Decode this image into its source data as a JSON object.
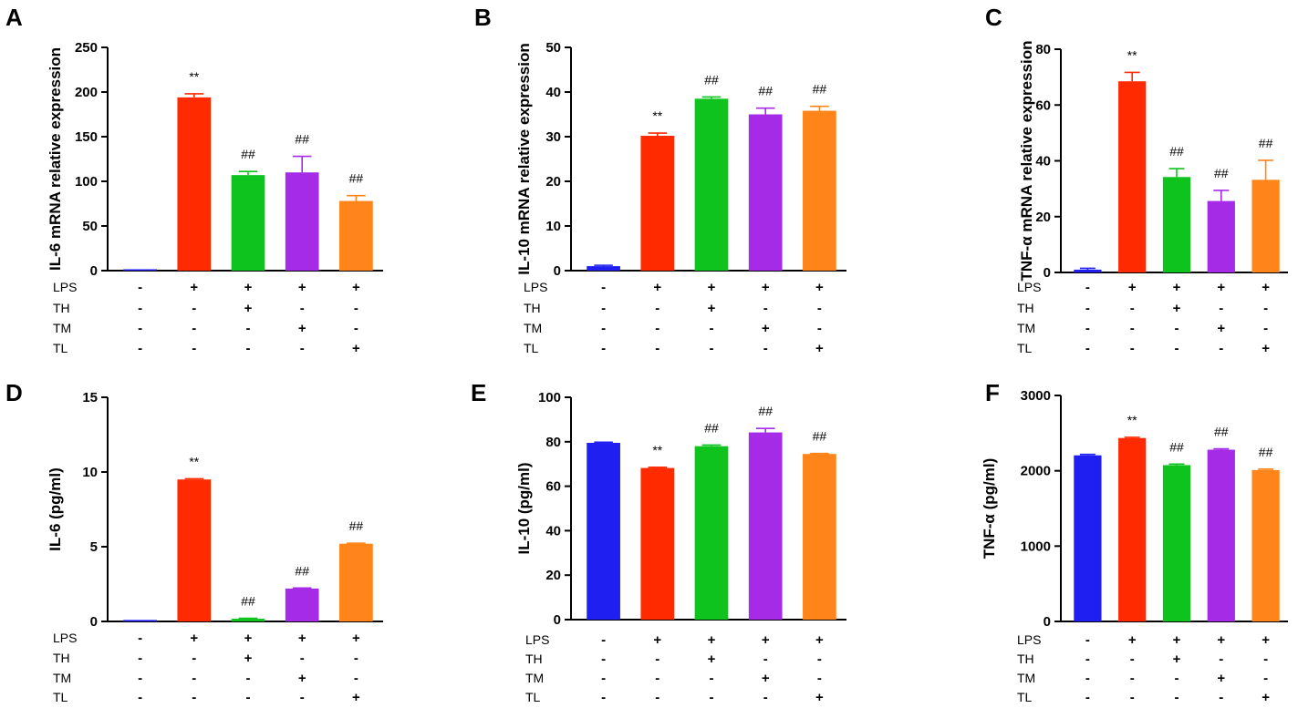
{
  "figure": {
    "condition_rows": [
      "LPS",
      "TH",
      "TM",
      "TL"
    ],
    "condition_signs": [
      [
        "-",
        "+",
        "+",
        "+",
        "+"
      ],
      [
        "-",
        "-",
        "+",
        "-",
        "-"
      ],
      [
        "-",
        "-",
        "-",
        "+",
        "-"
      ],
      [
        "-",
        "-",
        "-",
        "-",
        "+"
      ]
    ],
    "colors": [
      "#1f1ff2",
      "#ff2a00",
      "#0fc31f",
      "#a62be6",
      "#ff8419"
    ]
  },
  "chart_data": [
    {
      "panel": "A",
      "type": "bar",
      "ylabel": "IL-6 mRNA relative expression",
      "ylim": [
        0,
        250
      ],
      "yticks": [
        "0",
        "50",
        "100",
        "150",
        "200",
        "250"
      ],
      "categories": [
        "control",
        "LPS",
        "LPS+TH",
        "LPS+TM",
        "LPS+TL"
      ],
      "values": [
        0,
        194,
        107,
        110,
        78
      ],
      "errors": [
        0,
        4,
        4,
        18,
        6
      ],
      "annotations": [
        "",
        "**",
        "##",
        "##",
        "##"
      ]
    },
    {
      "panel": "B",
      "type": "bar",
      "ylabel": "IL-10 mRNA relative expression",
      "ylim": [
        0,
        50
      ],
      "yticks": [
        "0",
        "10",
        "20",
        "30",
        "40",
        "50"
      ],
      "categories": [
        "control",
        "LPS",
        "LPS+TH",
        "LPS+TM",
        "LPS+TL"
      ],
      "values": [
        1,
        30.2,
        38.5,
        35,
        35.8
      ],
      "errors": [
        0.2,
        0.6,
        0.4,
        1.4,
        1.0
      ],
      "annotations": [
        "",
        "**",
        "##",
        "##",
        "##"
      ]
    },
    {
      "panel": "C",
      "type": "bar",
      "ylabel": "TNF-α mRNA relative expression",
      "ylim": [
        0,
        80
      ],
      "yticks": [
        "0",
        "20",
        "40",
        "60",
        "80"
      ],
      "categories": [
        "control",
        "LPS",
        "LPS+TH",
        "LPS+TM",
        "LPS+TL"
      ],
      "values": [
        1,
        68.5,
        34.2,
        25.6,
        33.2
      ],
      "errors": [
        0.5,
        3.2,
        3.0,
        3.8,
        7.0
      ],
      "annotations": [
        "",
        "**",
        "##",
        "##",
        "##"
      ]
    },
    {
      "panel": "D",
      "type": "bar",
      "ylabel": "IL-6  (pg/ml)",
      "ylim": [
        0,
        15
      ],
      "yticks": [
        "0",
        "5",
        "10",
        "15"
      ],
      "categories": [
        "control",
        "LPS",
        "LPS+TH",
        "LPS+TM",
        "LPS+TL"
      ],
      "values": [
        0.1,
        9.5,
        0.18,
        2.2,
        5.2
      ],
      "errors": [
        0,
        0.05,
        0.03,
        0.04,
        0.03
      ],
      "annotations": [
        "",
        "**",
        "##",
        "##",
        "##"
      ]
    },
    {
      "panel": "E",
      "type": "bar",
      "ylabel": "IL-10  (pg/ml)",
      "ylim": [
        0,
        100
      ],
      "yticks": [
        "0",
        "20",
        "40",
        "60",
        "80",
        "100"
      ],
      "categories": [
        "control",
        "LPS",
        "LPS+TH",
        "LPS+TM",
        "LPS+TL"
      ],
      "values": [
        79.5,
        68.2,
        78,
        84.2,
        74.5
      ],
      "errors": [
        0.3,
        0.3,
        0.5,
        1.8,
        0.2
      ],
      "annotations": [
        "",
        "**",
        "##",
        "##",
        "##"
      ]
    },
    {
      "panel": "F",
      "type": "bar",
      "ylabel": "TNF-α  (pg/ml)",
      "ylim": [
        0,
        3000
      ],
      "yticks": [
        "0",
        "1000",
        "2000",
        "3000"
      ],
      "categories": [
        "control",
        "LPS",
        "LPS+TH",
        "LPS+TM",
        "LPS+TL"
      ],
      "values": [
        2205,
        2435,
        2075,
        2280,
        2010
      ],
      "errors": [
        12,
        10,
        14,
        12,
        12
      ],
      "annotations": [
        "",
        "**",
        "##",
        "##",
        "##"
      ]
    }
  ]
}
